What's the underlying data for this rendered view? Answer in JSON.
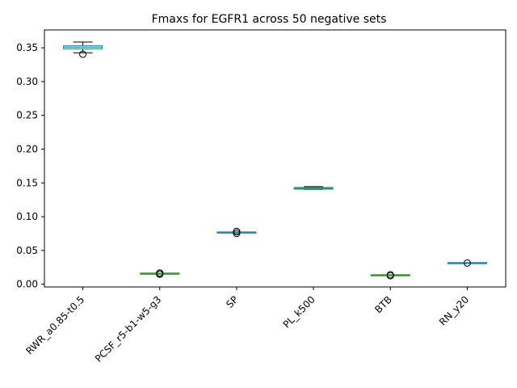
{
  "chart_data": {
    "type": "box",
    "title": "Fmaxs for EGFR1 across 50 negative sets",
    "xlabel": "",
    "ylabel": "",
    "ylim": [
      -0.004,
      0.3765
    ],
    "yticks": [
      0.0,
      0.05,
      0.1,
      0.15,
      0.2,
      0.25,
      0.3,
      0.35
    ],
    "ytick_labels": [
      "0.00",
      "0.05",
      "0.10",
      "0.15",
      "0.20",
      "0.25",
      "0.30",
      "0.35"
    ],
    "grid": false,
    "categories": [
      "RWR_a0.85-t0.5",
      "PCSF_r5-b1-w5-g3",
      "SP",
      "PL_k500",
      "BTB",
      "RN_y20"
    ],
    "boxes": [
      {
        "whislo": 0.3425,
        "q1": 0.3485,
        "med": 0.351,
        "q3": 0.353,
        "whishi": 0.3585,
        "fliers": [
          0.3405
        ]
      },
      {
        "whislo": 0.0152,
        "q1": 0.0155,
        "med": 0.0157,
        "q3": 0.0159,
        "whishi": 0.0162,
        "fliers": [
          0.0149,
          0.0165,
          0.0166
        ]
      },
      {
        "whislo": 0.0762,
        "q1": 0.0764,
        "med": 0.0766,
        "q3": 0.0768,
        "whishi": 0.0771,
        "fliers": [
          0.0752,
          0.0778,
          0.0782
        ]
      },
      {
        "whislo": 0.1405,
        "q1": 0.1408,
        "med": 0.1421,
        "q3": 0.1433,
        "whishi": 0.1445,
        "fliers": []
      },
      {
        "whislo": 0.0128,
        "q1": 0.0131,
        "med": 0.0133,
        "q3": 0.0135,
        "whishi": 0.0138,
        "fliers": [
          0.0126,
          0.0141
        ]
      },
      {
        "whislo": 0.0308,
        "q1": 0.0311,
        "med": 0.0313,
        "q3": 0.0315,
        "whishi": 0.0318,
        "fliers": [
          0.0314
        ]
      }
    ],
    "colors": {
      "box": "#1f77b4",
      "median": "#2ca02c",
      "whisker": "#000000",
      "flier": "#000000"
    }
  }
}
